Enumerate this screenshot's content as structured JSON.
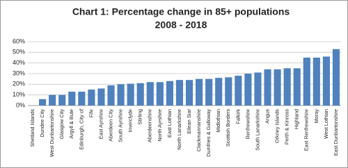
{
  "chart_data": {
    "type": "bar",
    "title": "Chart 1: Percentage change in 85+ populations",
    "subtitle": "2008 - 2018",
    "categories": [
      "Shetland Islands",
      "Dundee City",
      "West Dunbartonshire",
      "Glasgow City",
      "Argyll & Bute",
      "Edinburgh, City of",
      "Fife",
      "East Ayrshire",
      "Aberdeen City",
      "South Ayrshire",
      "Inverclyde",
      "Stirling",
      "Aberdeenshire",
      "North Ayrshire",
      "East Lothian",
      "North Lanarkshire",
      "Eilean Siar",
      "Clackmannanshire",
      "Dumfries & Galloway",
      "Midlothian",
      "Scottish Borders",
      "Falkirk",
      "Renfrewshire",
      "South Lanarkshire",
      "Angus",
      "Orkney Islands",
      "Perth & Kinross",
      "Highland",
      "East Renfrewshire",
      "Moray",
      "West Lothian",
      "East Dunbartonshire"
    ],
    "values": [
      0,
      6,
      10,
      10,
      13,
      13,
      15,
      16,
      19,
      20,
      20.5,
      21,
      22,
      22,
      23,
      24,
      24,
      25,
      25,
      26,
      26.5,
      28,
      30,
      31,
      34,
      34,
      35,
      35,
      45,
      45,
      46,
      53
    ],
    "color": "#4f81bd",
    "ylim": [
      0,
      60
    ],
    "yticks": [
      {
        "value": 0,
        "label": "0%"
      },
      {
        "value": 10,
        "label": "10%"
      },
      {
        "value": 20,
        "label": "20%"
      },
      {
        "value": 30,
        "label": "30%"
      },
      {
        "value": 40,
        "label": "40%"
      },
      {
        "value": 50,
        "label": "50%"
      },
      {
        "value": 60,
        "label": "60%"
      }
    ],
    "grid": true
  }
}
